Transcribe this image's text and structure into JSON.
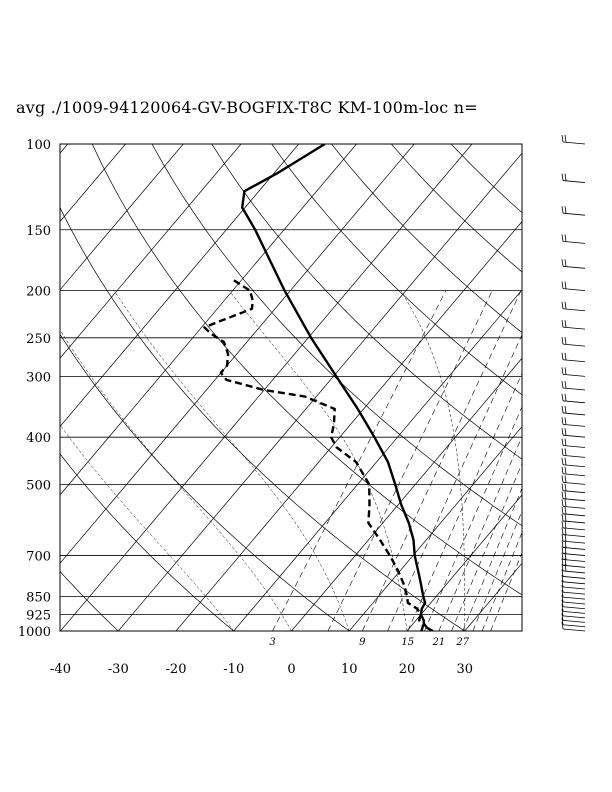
{
  "chart_data": {
    "type": "line",
    "title": "avg ./1009-94120064-GV-BOGFIX-T8C KM-100m-loc n=",
    "xlabel": "",
    "ylabel": "",
    "xlim": [
      -40,
      40
    ],
    "pressure_range": [
      1000,
      100
    ],
    "y_scale": "log",
    "x_ticks": [
      "-40",
      "-30",
      "-20",
      "-10",
      "0",
      "10",
      "20",
      "30"
    ],
    "pressure_levels": [
      "100",
      "150",
      "200",
      "250",
      "300",
      "400",
      "500",
      "700",
      "850",
      "925",
      "1000"
    ],
    "mixing_ratio_labels": [
      "3",
      "9",
      "15",
      "21",
      "27"
    ],
    "series": [
      {
        "style": "solid",
        "points": [
          {
            "p": 1000,
            "t": 24.5
          },
          {
            "p": 985,
            "t": 23.0
          },
          {
            "p": 965,
            "t": 21.8
          },
          {
            "p": 950,
            "t": 21.3
          },
          {
            "p": 925,
            "t": 20.0
          },
          {
            "p": 900,
            "t": 19.3
          },
          {
            "p": 875,
            "t": 19.0
          },
          {
            "p": 850,
            "t": 17.8
          },
          {
            "p": 800,
            "t": 15.5
          },
          {
            "p": 750,
            "t": 13.0
          },
          {
            "p": 700,
            "t": 10.3
          },
          {
            "p": 650,
            "t": 7.8
          },
          {
            "p": 600,
            "t": 4.5
          },
          {
            "p": 550,
            "t": 0.5
          },
          {
            "p": 500,
            "t": -3.5
          },
          {
            "p": 450,
            "t": -8.0
          },
          {
            "p": 400,
            "t": -14.0
          },
          {
            "p": 350,
            "t": -21.0
          },
          {
            "p": 300,
            "t": -29.5
          },
          {
            "p": 250,
            "t": -39.5
          },
          {
            "p": 200,
            "t": -51.0
          },
          {
            "p": 175,
            "t": -57.5
          },
          {
            "p": 150,
            "t": -65.0
          },
          {
            "p": 135,
            "t": -70.5
          },
          {
            "p": 125,
            "t": -72.5
          },
          {
            "p": 115,
            "t": -69.5
          },
          {
            "p": 100,
            "t": -65.5
          }
        ]
      },
      {
        "style": "dashed",
        "points": [
          {
            "p": 1000,
            "t": 22.5
          },
          {
            "p": 975,
            "t": 22.0
          },
          {
            "p": 950,
            "t": 20.5
          },
          {
            "p": 925,
            "t": 20.0
          },
          {
            "p": 900,
            "t": 18.5
          },
          {
            "p": 875,
            "t": 16.0
          },
          {
            "p": 850,
            "t": 15.0
          },
          {
            "p": 800,
            "t": 12.5
          },
          {
            "p": 750,
            "t": 9.5
          },
          {
            "p": 700,
            "t": 6.0
          },
          {
            "p": 650,
            "t": 2.0
          },
          {
            "p": 600,
            "t": -2.5
          },
          {
            "p": 550,
            "t": -5.0
          },
          {
            "p": 500,
            "t": -8.0
          },
          {
            "p": 450,
            "t": -13.5
          },
          {
            "p": 420,
            "t": -19.0
          },
          {
            "p": 400,
            "t": -21.5
          },
          {
            "p": 375,
            "t": -23.0
          },
          {
            "p": 350,
            "t": -25.0
          },
          {
            "p": 330,
            "t": -32.0
          },
          {
            "p": 320,
            "t": -40.0
          },
          {
            "p": 305,
            "t": -48.0
          },
          {
            "p": 295,
            "t": -50.0
          },
          {
            "p": 285,
            "t": -50.0
          },
          {
            "p": 270,
            "t": -51.5
          },
          {
            "p": 255,
            "t": -54.0
          },
          {
            "p": 245,
            "t": -57.5
          },
          {
            "p": 238,
            "t": -59.5
          },
          {
            "p": 232,
            "t": -58.0
          },
          {
            "p": 225,
            "t": -56.0
          },
          {
            "p": 218,
            "t": -54.0
          },
          {
            "p": 210,
            "t": -55.0
          },
          {
            "p": 200,
            "t": -57.0
          },
          {
            "p": 190,
            "t": -61.5
          }
        ]
      }
    ],
    "wind_barbs": 46
  }
}
